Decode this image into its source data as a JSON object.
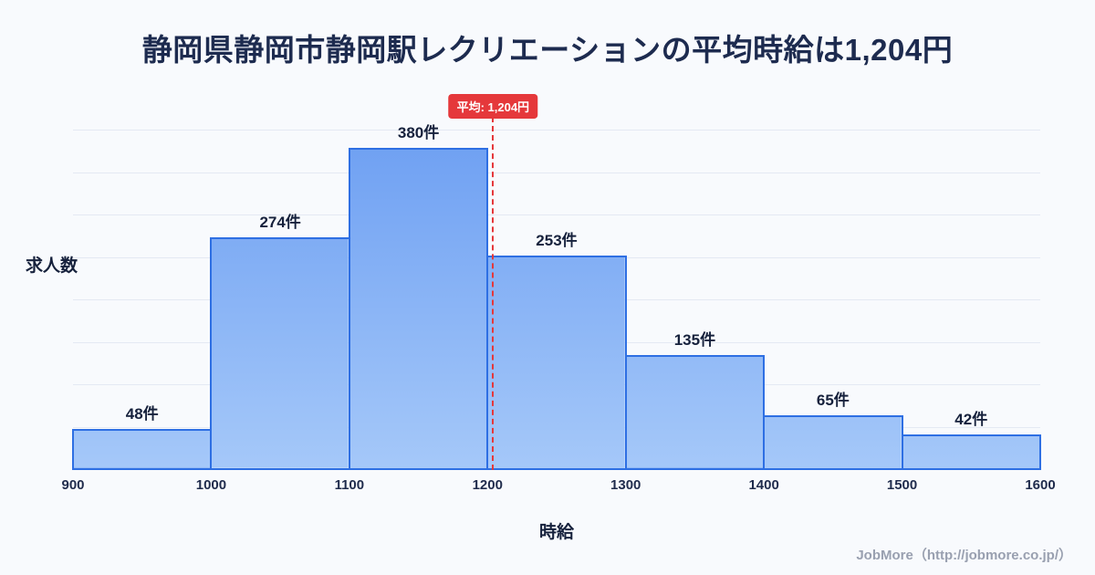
{
  "chart_data": {
    "type": "bar",
    "title": "静岡県静岡市静岡駅レクリエーションの平均時給は1,204円",
    "xlabel": "時給",
    "ylabel": "求人数",
    "bin_edges": [
      900,
      1000,
      1100,
      1200,
      1300,
      1400,
      1500,
      1600
    ],
    "x_tick_labels": [
      "900",
      "1000",
      "1100",
      "1200",
      "1300",
      "1400",
      "1500",
      "1600"
    ],
    "values": [
      48,
      274,
      380,
      253,
      135,
      65,
      42
    ],
    "bar_labels": [
      "48件",
      "274件",
      "380件",
      "253件",
      "135件",
      "65件",
      "42件"
    ],
    "unit": "件",
    "xlim": [
      900,
      1600
    ],
    "ylim": [
      0,
      400
    ],
    "grid": true,
    "grid_step": 50,
    "legend": "none",
    "average_line": {
      "value": 1204,
      "label": "平均: 1,204円",
      "style": "dashed"
    },
    "colors": {
      "bar_gradient_top": "#6d9ff2",
      "bar_gradient_bottom": "#a5c8f9",
      "bar_border": "#2e6fe3",
      "grid_line": "#e4e9f3",
      "average_line": "#e5383b",
      "background": "#f8fafd",
      "text_dark": "#16213c"
    }
  },
  "footer": {
    "credit": "JobMore（http://jobmore.co.jp/）"
  }
}
